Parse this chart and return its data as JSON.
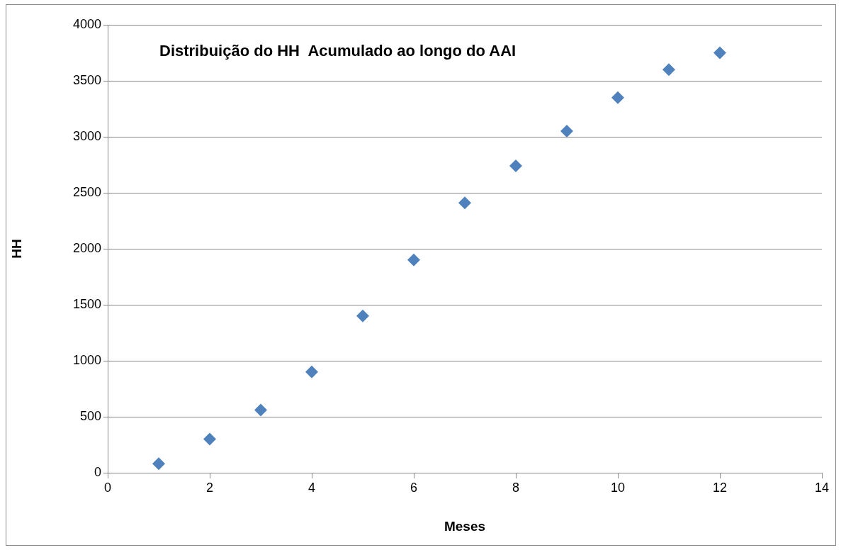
{
  "chart_data": {
    "type": "scatter",
    "title": "Distribuição do HH  Acumulado ao longo do AAI",
    "xlabel": "Meses",
    "ylabel": "HH",
    "x": [
      1,
      2,
      3,
      4,
      5,
      6,
      7,
      8,
      9,
      10,
      11,
      12
    ],
    "series": [
      {
        "color": "#4f81bd",
        "values": [
          80,
          300,
          560,
          900,
          1400,
          1900,
          2410,
          2740,
          3050,
          3350,
          3600,
          3750
        ]
      }
    ],
    "xlim": [
      0,
      14
    ],
    "xticks": [
      0,
      2,
      4,
      6,
      8,
      10,
      12,
      14
    ],
    "ylim": [
      0,
      4000
    ],
    "yticks": [
      0,
      500,
      1000,
      1500,
      2000,
      2500,
      3000,
      3500,
      4000
    ],
    "grid": "y",
    "legend": false,
    "marker": "diamond"
  }
}
